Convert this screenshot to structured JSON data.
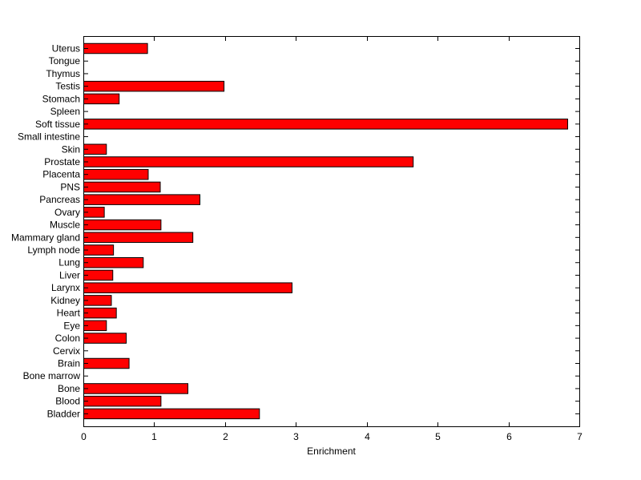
{
  "chart_data": {
    "type": "bar",
    "orientation": "horizontal",
    "categories": [
      "Uterus",
      "Tongue",
      "Thymus",
      "Testis",
      "Stomach",
      "Spleen",
      "Soft tissue",
      "Small intestine",
      "Skin",
      "Prostate",
      "Placenta",
      "PNS",
      "Pancreas",
      "Ovary",
      "Muscle",
      "Mammary gland",
      "Lymph node",
      "Lung",
      "Liver",
      "Larynx",
      "Kidney",
      "Heart",
      "Eye",
      "Colon",
      "Cervix",
      "Brain",
      "Bone marrow",
      "Bone",
      "Blood",
      "Bladder"
    ],
    "values": [
      0.9,
      0,
      0,
      1.98,
      0.5,
      0,
      6.83,
      0,
      0.32,
      4.65,
      0.91,
      1.08,
      1.64,
      0.29,
      1.09,
      1.54,
      0.42,
      0.84,
      0.41,
      2.94,
      0.39,
      0.46,
      0.32,
      0.6,
      0,
      0.64,
      0,
      1.47,
      1.09,
      2.48
    ],
    "xlabel": "Enrichment",
    "ylabel": "",
    "title": "",
    "xlim": [
      0,
      7
    ],
    "xticks": [
      "0",
      "1",
      "2",
      "3",
      "4",
      "5",
      "6",
      "7"
    ],
    "grid": false,
    "bar_color": "#ff0000",
    "edge_color": "#000000"
  }
}
